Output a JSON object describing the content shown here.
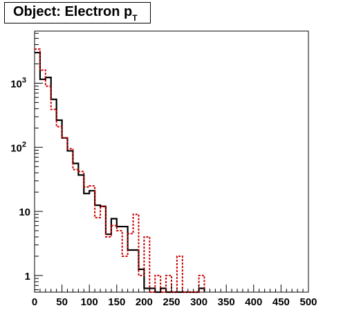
{
  "title": {
    "main": "Object: Electron p",
    "subscript": "T"
  },
  "chart_data": {
    "type": "histogram",
    "xlim": [
      0,
      500
    ],
    "ylim_log": [
      0.55,
      6500
    ],
    "log_y": true,
    "bin_width": 10,
    "x_ticks": [
      0,
      50,
      100,
      150,
      200,
      250,
      300,
      350,
      400,
      450,
      500
    ],
    "y_ticks": [
      {
        "value": 1,
        "label": "1"
      },
      {
        "value": 10,
        "label": "10"
      },
      {
        "value": 100,
        "label": "10",
        "exp": "2"
      },
      {
        "value": 1000,
        "label": "10",
        "exp": "3"
      }
    ],
    "series": [
      {
        "color": "#000000",
        "style": "solid",
        "bin_edges": [
          0,
          10,
          20,
          30,
          40,
          50,
          60,
          70,
          80,
          90,
          100,
          110,
          120,
          130,
          140,
          150,
          160,
          170,
          180,
          190,
          200,
          210,
          220,
          230,
          240,
          250,
          260,
          270,
          280,
          290,
          300,
          310
        ],
        "values": [
          3000,
          1150,
          1230,
          560,
          265,
          140,
          88,
          56,
          37,
          19,
          21,
          12.5,
          12,
          4.4,
          7.7,
          5.8,
          5.8,
          2.5,
          2.5,
          1.25,
          0.63,
          0.63,
          0,
          0.63,
          0,
          0,
          0,
          0,
          0,
          0,
          0.63
        ]
      },
      {
        "color": "#cc0000",
        "style": "dashed",
        "bin_edges": [
          0,
          10,
          20,
          30,
          40,
          50,
          60,
          70,
          80,
          90,
          100,
          110,
          120,
          130,
          140,
          150,
          160,
          170,
          180,
          190,
          200,
          210,
          220,
          230,
          240,
          250,
          260,
          270,
          280,
          290,
          300,
          310
        ],
        "values": [
          3400,
          1600,
          900,
          390,
          210,
          140,
          95,
          45,
          42,
          24,
          25,
          8,
          12,
          4,
          6,
          5,
          2,
          4.5,
          9,
          1,
          4,
          0,
          1,
          0,
          1,
          0,
          2,
          0,
          0,
          0,
          1
        ]
      }
    ]
  }
}
